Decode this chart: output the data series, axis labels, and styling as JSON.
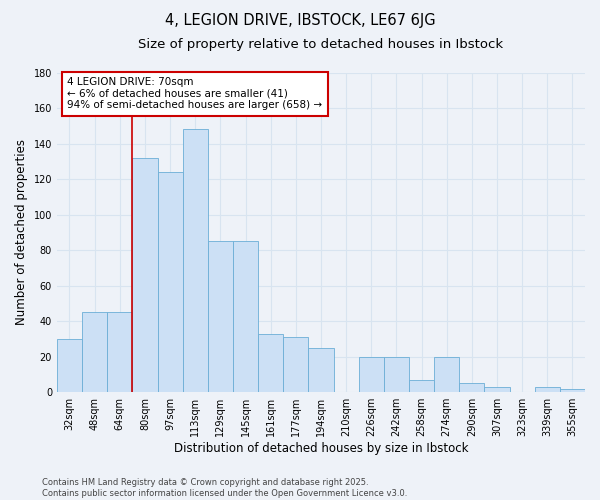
{
  "title": "4, LEGION DRIVE, IBSTOCK, LE67 6JG",
  "subtitle": "Size of property relative to detached houses in Ibstock",
  "xlabel": "Distribution of detached houses by size in Ibstock",
  "ylabel": "Number of detached properties",
  "footnote1": "Contains HM Land Registry data © Crown copyright and database right 2025.",
  "footnote2": "Contains public sector information licensed under the Open Government Licence v3.0.",
  "categories": [
    "32sqm",
    "48sqm",
    "64sqm",
    "80sqm",
    "97sqm",
    "113sqm",
    "129sqm",
    "145sqm",
    "161sqm",
    "177sqm",
    "194sqm",
    "210sqm",
    "226sqm",
    "242sqm",
    "258sqm",
    "274sqm",
    "290sqm",
    "307sqm",
    "323sqm",
    "339sqm",
    "355sqm"
  ],
  "values": [
    30,
    45,
    45,
    132,
    124,
    148,
    85,
    85,
    33,
    31,
    25,
    0,
    20,
    20,
    7,
    20,
    5,
    3,
    0,
    3,
    2
  ],
  "bar_color": "#cce0f5",
  "bar_edge_color": "#6baed6",
  "property_line_index": 3,
  "property_line_color": "#cc0000",
  "annotation_line1": "4 LEGION DRIVE: 70sqm",
  "annotation_line2": "← 6% of detached houses are smaller (41)",
  "annotation_line3": "94% of semi-detached houses are larger (658) →",
  "annotation_box_color": "#cc0000",
  "ylim": [
    0,
    180
  ],
  "yticks": [
    0,
    20,
    40,
    60,
    80,
    100,
    120,
    140,
    160,
    180
  ],
  "background_color": "#eef2f8",
  "grid_color": "#d8e4f0",
  "title_fontsize": 10.5,
  "subtitle_fontsize": 9.5,
  "axis_label_fontsize": 8.5,
  "tick_fontsize": 7,
  "annot_fontsize": 7.5
}
